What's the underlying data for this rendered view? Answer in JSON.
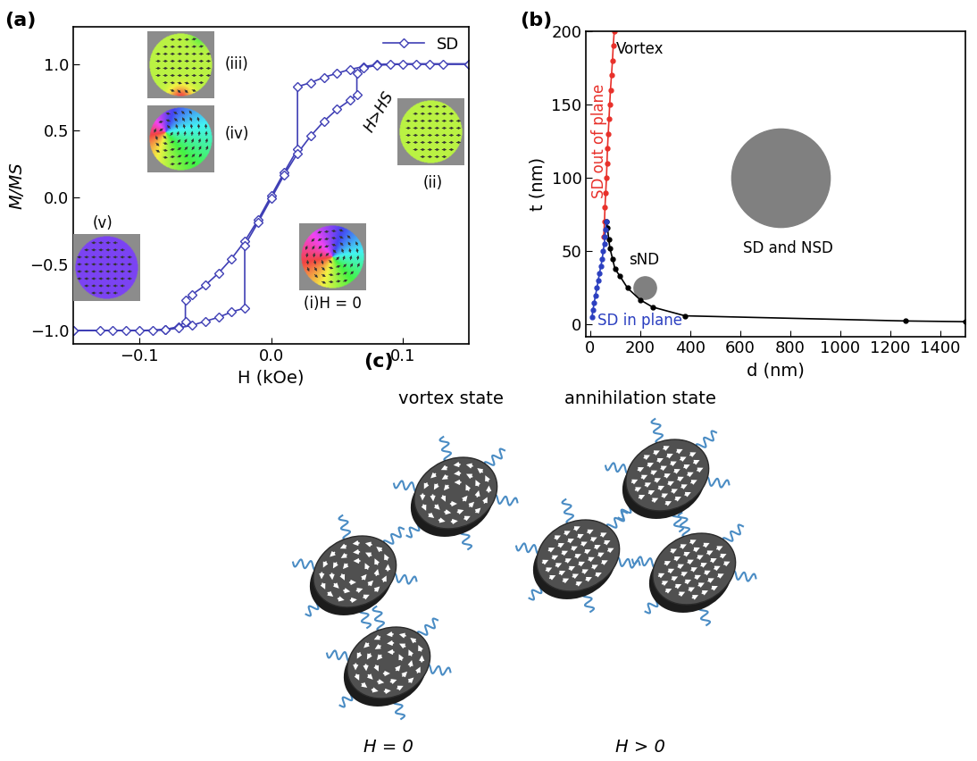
{
  "chart_data": [
    {
      "panel": "(a)",
      "type": "line",
      "xlabel": "H (kOe)",
      "ylabel": "M/MS",
      "xlim": [
        -0.15,
        0.15
      ],
      "xticks": [
        {
          "value": -0.1,
          "label": "−0.1"
        },
        {
          "value": 0.0,
          "label": "0.0"
        },
        {
          "value": 0.1,
          "label": "0.1"
        }
      ],
      "ylim": [
        -1.1,
        1.28
      ],
      "yticks": [
        {
          "value": -1.0,
          "label": "−1.0"
        },
        {
          "value": -0.5,
          "label": "−0.5"
        },
        {
          "value": 0.0,
          "label": "0.0"
        },
        {
          "value": 0.5,
          "label": "0.5"
        },
        {
          "value": 1.0,
          "label": "1.0"
        }
      ],
      "legend": "upper right",
      "series": [
        {
          "name": "SD",
          "color": "#3f3fb5",
          "marker": "diamond",
          "line_style": "solid",
          "x": [
            0.15,
            0.13,
            0.11,
            0.09,
            0.08,
            0.07,
            0.06,
            0.05,
            0.04,
            0.03,
            0.02,
            0.02,
            0.01,
            0.0,
            -0.01,
            -0.02,
            -0.03,
            -0.04,
            -0.05,
            -0.06,
            -0.065,
            -0.065,
            -0.07,
            -0.08,
            -0.1,
            -0.12,
            -0.15,
            -0.15,
            -0.13,
            -0.11,
            -0.09,
            -0.08,
            -0.07,
            -0.06,
            -0.05,
            -0.04,
            -0.03,
            -0.02,
            -0.02,
            -0.01,
            0.0,
            0.01,
            0.02,
            0.03,
            0.04,
            0.05,
            0.06,
            0.065,
            0.065,
            0.07,
            0.08,
            0.1,
            0.12,
            0.15
          ],
          "values": [
            1.0,
            1.0,
            1.0,
            1.0,
            0.995,
            0.98,
            0.96,
            0.93,
            0.9,
            0.86,
            0.83,
            0.36,
            0.19,
            0.01,
            -0.17,
            -0.33,
            -0.46,
            -0.57,
            -0.66,
            -0.73,
            -0.77,
            -0.93,
            -0.97,
            -0.99,
            -1.0,
            -1.0,
            -1.0,
            -1.0,
            -1.0,
            -1.0,
            -1.0,
            -0.995,
            -0.98,
            -0.96,
            -0.93,
            -0.9,
            -0.86,
            -0.83,
            -0.36,
            -0.19,
            -0.01,
            0.17,
            0.33,
            0.46,
            0.57,
            0.66,
            0.73,
            0.77,
            0.93,
            0.97,
            0.99,
            1.0,
            1.0,
            1.0
          ]
        }
      ],
      "annotations": [
        "(i)H = 0",
        "(ii)",
        "(iii)",
        "(iv)",
        "(v)",
        "H>HS"
      ]
    },
    {
      "panel": "(b)",
      "type": "line",
      "xlabel": "d (nm)",
      "ylabel": "t (nm)",
      "xlim": [
        -15,
        1500
      ],
      "xticks": [
        0,
        200,
        400,
        600,
        800,
        1000,
        1200,
        1400
      ],
      "ylim": [
        -8,
        200
      ],
      "yticks": [
        0,
        50,
        100,
        150,
        200
      ],
      "series": [
        {
          "color": "#e8302a",
          "marker": "circle",
          "line_style": "solid",
          "x": [
            55,
            58,
            60,
            63,
            66,
            68,
            70,
            73,
            76,
            79,
            82,
            86,
            90,
            93,
            97
          ],
          "values": [
            60,
            70,
            80,
            90,
            100,
            110,
            120,
            130,
            140,
            150,
            160,
            170,
            180,
            190,
            200
          ]
        },
        {
          "color": "#000000",
          "marker": "circle",
          "line_style": "solid",
          "x": [
            65,
            70,
            75,
            80,
            90,
            100,
            120,
            150,
            200,
            250,
            380,
            1260,
            1500
          ],
          "values": [
            70,
            66,
            58,
            52,
            45,
            38,
            33,
            25,
            17,
            12,
            6,
            2.5,
            2
          ]
        },
        {
          "color": "#2b3fc0",
          "marker": "circle",
          "line_style": "solid",
          "x": [
            8,
            12,
            17,
            22,
            28,
            33,
            38,
            44,
            49,
            53,
            57,
            60,
            62,
            65
          ],
          "values": [
            5,
            10,
            15,
            20,
            25,
            30,
            35,
            40,
            45,
            50,
            55,
            60,
            65,
            70
          ]
        }
      ],
      "annotations": [
        {
          "text": "Vortex",
          "color": "#000000"
        },
        {
          "text": "SD out of plane",
          "color": "#e8302a"
        },
        {
          "text": "SD in plane",
          "color": "#2b3fc0"
        },
        {
          "text": "sND",
          "color": "#000000"
        },
        {
          "text": "SD and NSD",
          "color": "#000000"
        }
      ]
    }
  ],
  "diagram": {
    "panel": "(c)",
    "states": [
      {
        "title": "vortex state",
        "field": "H = 0"
      },
      {
        "title": "annihilation state",
        "field": "H > 0"
      }
    ]
  }
}
